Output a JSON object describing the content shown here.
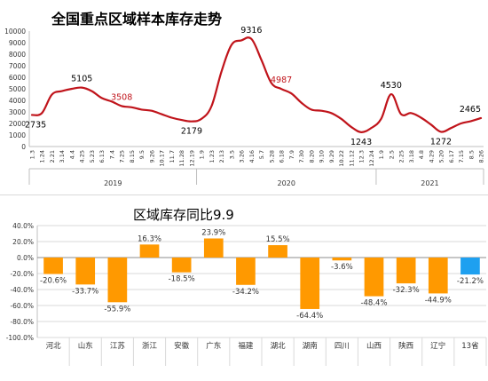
{
  "chart_data": [
    {
      "type": "line",
      "title": "全国重点区域样本库存走势",
      "ylim": [
        0,
        10000
      ],
      "yticks": [
        0,
        1000,
        2000,
        3000,
        4000,
        5000,
        6000,
        7000,
        8000,
        9000,
        10000
      ],
      "x_tick_labels": [
        "1.3",
        "1.24",
        "2.21",
        "3.14",
        "4.4",
        "4.25",
        "5.23",
        "6.13",
        "7.4",
        "7.25",
        "8.15",
        "9.5",
        "9.26",
        "10.17",
        "11.7",
        "11.28",
        "12.19",
        "1.9",
        "1.23",
        "2.13",
        "3.5",
        "3.26",
        "4.16",
        "5.7",
        "5.28",
        "6.18",
        "7.9",
        "7.30",
        "8.20",
        "9.10",
        "9.29",
        "10.22",
        "11.12",
        "12.3",
        "12.24",
        "1.9",
        "2.5",
        "2.25",
        "3.18",
        "4.8",
        "4.29",
        "5.20",
        "6.17",
        "7.15",
        "8.5",
        "8.26"
      ],
      "year_groups": [
        {
          "label": "2019",
          "from": 0,
          "to": 16
        },
        {
          "label": "2020",
          "from": 17,
          "to": 34
        },
        {
          "label": "2021",
          "from": 35,
          "to": 45
        }
      ],
      "series": [
        {
          "color": "#c0141b",
          "values": [
            2735,
            2900,
            4500,
            4800,
            5000,
            5105,
            4800,
            4200,
            3900,
            3508,
            3400,
            3200,
            3100,
            2800,
            2500,
            2300,
            2179,
            2400,
            3500,
            6500,
            8800,
            9200,
            9316,
            7500,
            5500,
            4987,
            4600,
            3800,
            3200,
            3100,
            2900,
            2400,
            1700,
            1243,
            1600,
            2400,
            4530,
            2800,
            2900,
            2500,
            1900,
            1272,
            1600,
            2000,
            2200,
            2465
          ]
        }
      ],
      "annotations": [
        {
          "index": 0,
          "text": "2735",
          "color": "#000000",
          "pos": "right-below"
        },
        {
          "index": 5,
          "text": "5105",
          "color": "#000000",
          "pos": "above"
        },
        {
          "index": 9,
          "text": "3508",
          "color": "#c0141b",
          "pos": "above"
        },
        {
          "index": 16,
          "text": "2179",
          "color": "#000000",
          "pos": "below"
        },
        {
          "index": 22,
          "text": "9316",
          "color": "#000000",
          "pos": "above"
        },
        {
          "index": 25,
          "text": "4987",
          "color": "#c0141b",
          "pos": "above"
        },
        {
          "index": 33,
          "text": "1243",
          "color": "#000000",
          "pos": "below"
        },
        {
          "index": 36,
          "text": "4530",
          "color": "#000000",
          "pos": "above"
        },
        {
          "index": 41,
          "text": "1272",
          "color": "#000000",
          "pos": "below"
        },
        {
          "index": 45,
          "text": "2465",
          "color": "#000000",
          "pos": "above"
        }
      ],
      "grid": false
    },
    {
      "type": "bar",
      "title": "区域库存同比9.9",
      "categories": [
        "河北",
        "山东",
        "江苏",
        "浙江",
        "安徽",
        "广东",
        "福建",
        "湖北",
        "湖南",
        "四川",
        "山西",
        "陕西",
        "辽宁",
        "13省"
      ],
      "values": [
        -20.6,
        -33.7,
        -55.9,
        16.3,
        -18.5,
        23.9,
        -34.2,
        15.5,
        -64.4,
        -3.6,
        -48.4,
        -32.3,
        -44.9,
        -21.2
      ],
      "labels": [
        "-20.6%",
        "-33.7%",
        "-55.9%",
        "16.3%",
        "-18.5%",
        "23.9%",
        "-34.2%",
        "15.5%",
        "-64.4%",
        "-3.6%",
        "-48.4%",
        "-32.3%",
        "-44.9%",
        "-21.2%"
      ],
      "bar_colors": [
        "#ff9900",
        "#ff9900",
        "#ff9900",
        "#ff9900",
        "#ff9900",
        "#ff9900",
        "#ff9900",
        "#ff9900",
        "#ff9900",
        "#ff9900",
        "#ff9900",
        "#ff9900",
        "#ff9900",
        "#1ea0f0"
      ],
      "ylim": [
        -100,
        40
      ],
      "yticks": [
        40,
        20,
        0,
        -20,
        -40,
        -60,
        -80,
        -100
      ],
      "ytick_labels": [
        "40.0%",
        "20.0%",
        "0.0%",
        "-20.0%",
        "-40.0%",
        "-60.0%",
        "-80.0%",
        "-100.0%"
      ],
      "grid": true
    }
  ]
}
